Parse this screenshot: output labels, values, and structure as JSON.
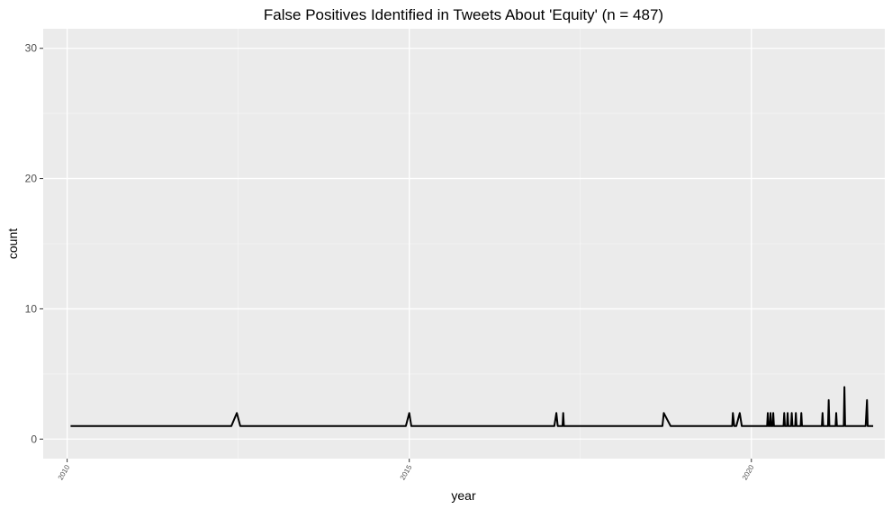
{
  "chart_data": {
    "type": "line",
    "title": "False Positives Identified in Tweets About 'Equity' (n = 487)",
    "xlabel": "year",
    "ylabel": "count",
    "xlim": [
      2009.65,
      2021.95
    ],
    "ylim": [
      -1.5,
      31.5
    ],
    "yticks": [
      0,
      10,
      20,
      30
    ],
    "xticks": [
      {
        "value": 2010,
        "label": "2010"
      },
      {
        "value": 2015,
        "label": "2015"
      },
      {
        "value": 2020,
        "label": "2020"
      }
    ],
    "grid": true,
    "series": [
      {
        "color": "#000000",
        "points": [
          [
            2010.05,
            1
          ],
          [
            2012.4,
            1
          ],
          [
            2012.48,
            2
          ],
          [
            2012.53,
            1
          ],
          [
            2014.95,
            1
          ],
          [
            2015.0,
            2
          ],
          [
            2015.03,
            1
          ],
          [
            2017.12,
            1
          ],
          [
            2017.15,
            2
          ],
          [
            2017.17,
            1
          ],
          [
            2017.24,
            1
          ],
          [
            2017.25,
            2
          ],
          [
            2017.26,
            1
          ],
          [
            2018.7,
            1
          ],
          [
            2018.72,
            2
          ],
          [
            2018.82,
            1
          ],
          [
            2019.72,
            1
          ],
          [
            2019.73,
            2
          ],
          [
            2019.75,
            1
          ],
          [
            2019.78,
            1
          ],
          [
            2019.83,
            2
          ],
          [
            2019.86,
            1
          ],
          [
            2020.23,
            1
          ],
          [
            2020.24,
            2
          ],
          [
            2020.25,
            1
          ],
          [
            2020.27,
            1
          ],
          [
            2020.28,
            2
          ],
          [
            2020.29,
            1
          ],
          [
            2020.31,
            1
          ],
          [
            2020.32,
            2
          ],
          [
            2020.33,
            1
          ],
          [
            2020.47,
            1
          ],
          [
            2020.48,
            2
          ],
          [
            2020.49,
            1
          ],
          [
            2020.52,
            1
          ],
          [
            2020.53,
            2
          ],
          [
            2020.54,
            1
          ],
          [
            2020.58,
            1
          ],
          [
            2020.59,
            2
          ],
          [
            2020.6,
            1
          ],
          [
            2020.64,
            1
          ],
          [
            2020.65,
            2
          ],
          [
            2020.66,
            1
          ],
          [
            2020.72,
            1
          ],
          [
            2020.73,
            2
          ],
          [
            2020.74,
            1
          ],
          [
            2021.03,
            1
          ],
          [
            2021.04,
            2
          ],
          [
            2021.05,
            1
          ],
          [
            2021.12,
            1
          ],
          [
            2021.13,
            3
          ],
          [
            2021.14,
            1
          ],
          [
            2021.23,
            1
          ],
          [
            2021.24,
            2
          ],
          [
            2021.25,
            1
          ],
          [
            2021.35,
            1
          ],
          [
            2021.36,
            4
          ],
          [
            2021.37,
            1
          ],
          [
            2021.67,
            1
          ],
          [
            2021.68,
            2
          ],
          [
            2021.69,
            3
          ],
          [
            2021.7,
            1
          ],
          [
            2021.78,
            1
          ]
        ]
      }
    ]
  }
}
